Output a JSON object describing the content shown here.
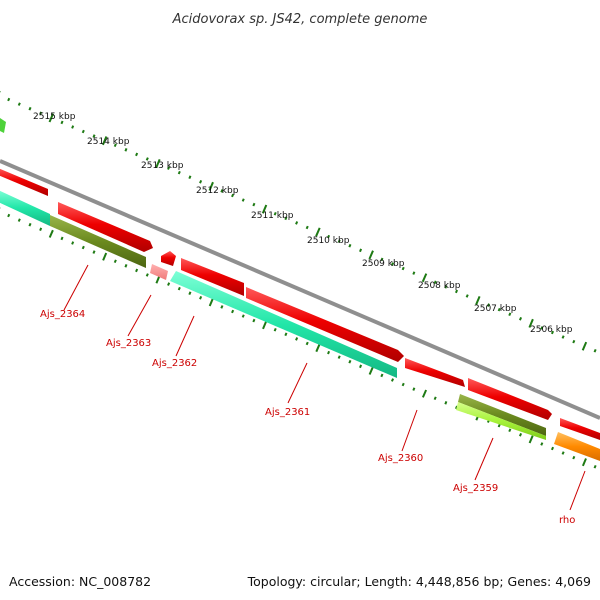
{
  "title": "Acidovorax sp. JS42, complete genome",
  "footer": {
    "accession": "Accession: NC_008782",
    "summary": "Topology: circular; Length: 4,448,856 bp; Genes: 4,069"
  },
  "colors": {
    "backbone": "#8f8f8f",
    "forward_gene": "#ee0000",
    "reverse_teal": "#22e6a8",
    "reverse_olive": "#6b8a1f",
    "reverse_lime": "#a7f23a",
    "reverse_orange": "#ff8a00",
    "tick": "#1e7a14",
    "label": "#cc0000"
  },
  "kbp_ticks": [
    "2515 kbp",
    "2514 kbp",
    "2513 kbp",
    "2512 kbp",
    "2511 kbp",
    "2510 kbp",
    "2509 kbp",
    "2508 kbp",
    "2507 kbp",
    "2506 kbp"
  ],
  "genes": [
    {
      "name": "Ajs_2364",
      "strand": "reverse",
      "color": "olive"
    },
    {
      "name": "Ajs_2363",
      "strand": "reverse",
      "color": "pink"
    },
    {
      "name": "Ajs_2362",
      "strand": "reverse",
      "color": "teal"
    },
    {
      "name": "Ajs_2361",
      "strand": "forward",
      "color": "red"
    },
    {
      "name": "Ajs_2360",
      "strand": "forward",
      "color": "red"
    },
    {
      "name": "Ajs_2359",
      "strand": "reverse",
      "color": "olive-lime"
    },
    {
      "name": "rho",
      "strand": "reverse",
      "color": "orange"
    }
  ]
}
